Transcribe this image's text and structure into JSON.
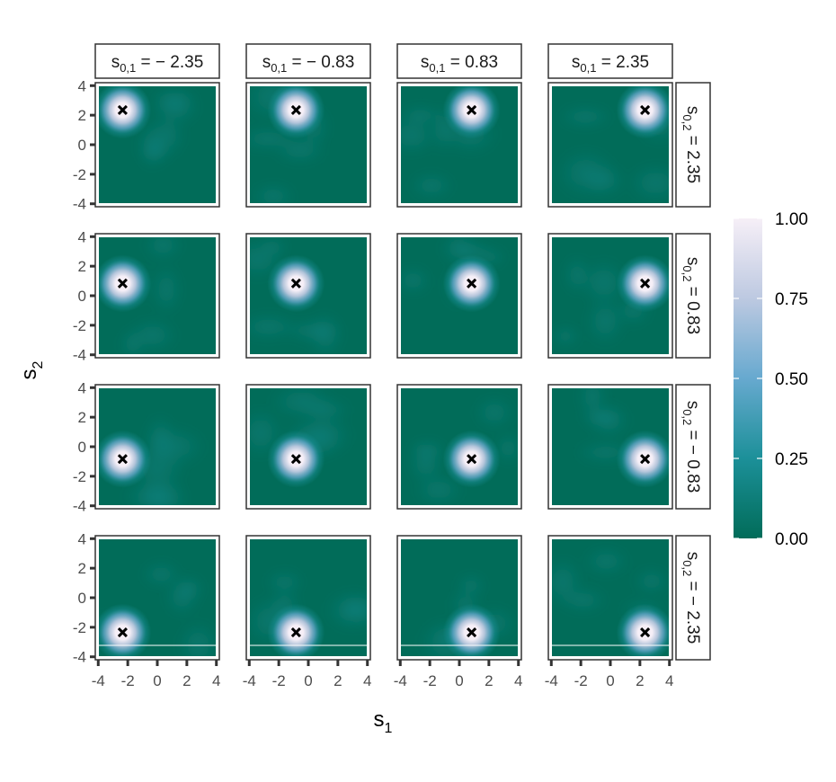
{
  "chart_data": {
    "type": "heatmap",
    "facet_layout": "4x4 grid",
    "columns": [
      {
        "value": -2.35,
        "strip_text": {
          "base": "s",
          "sub": "0,1",
          "rel": " = ",
          "val": "− 2.35"
        }
      },
      {
        "value": -0.83,
        "strip_text": {
          "base": "s",
          "sub": "0,1",
          "rel": " = ",
          "val": "− 0.83"
        }
      },
      {
        "value": 0.83,
        "strip_text": {
          "base": "s",
          "sub": "0,1",
          "rel": " = ",
          "val": "0.83"
        }
      },
      {
        "value": 2.35,
        "strip_text": {
          "base": "s",
          "sub": "0,1",
          "rel": " = ",
          "val": "2.35"
        }
      }
    ],
    "rows": [
      {
        "value": 2.35,
        "strip_text": {
          "base": "s",
          "sub": "0,2",
          "rel": " = ",
          "val": "2.35"
        }
      },
      {
        "value": 0.83,
        "strip_text": {
          "base": "s",
          "sub": "0,2",
          "rel": " = ",
          "val": "0.83"
        }
      },
      {
        "value": -0.83,
        "strip_text": {
          "base": "s",
          "sub": "0,2",
          "rel": " = ",
          "val": "− 0.83"
        }
      },
      {
        "value": -2.35,
        "strip_text": {
          "base": "s",
          "sub": "0,2",
          "rel": " = ",
          "val": "− 2.35"
        }
      }
    ],
    "xlabel": {
      "base": "s",
      "sub": "1"
    },
    "ylabel": {
      "base": "s",
      "sub": "2"
    },
    "xlim": [
      -4.2,
      4.2
    ],
    "ylim": [
      -4.2,
      4.2
    ],
    "x_ticks": [
      -4,
      -2,
      0,
      2,
      4
    ],
    "y_ticks": [
      -4,
      -2,
      0,
      2,
      4
    ],
    "x_tick_labels": [
      "-4",
      "-2",
      "0",
      "2",
      "4"
    ],
    "y_tick_labels": [
      "-4",
      "-2",
      "0",
      "2",
      "4"
    ],
    "marker": "cross at (s0,1, s0,2)",
    "peak_value": 1.0,
    "background_value": 0.05,
    "legend": {
      "position": "right",
      "min": 0.0,
      "max": 1.0,
      "ticks": [
        0.0,
        0.25,
        0.5,
        0.75,
        1.0
      ],
      "tick_labels": [
        "0.00",
        "0.25",
        "0.50",
        "0.75",
        "1.00"
      ],
      "colors": [
        "#016c59",
        "#1c9099",
        "#67a9cf",
        "#bdc9e1",
        "#f6eff7"
      ]
    },
    "grid": false
  }
}
